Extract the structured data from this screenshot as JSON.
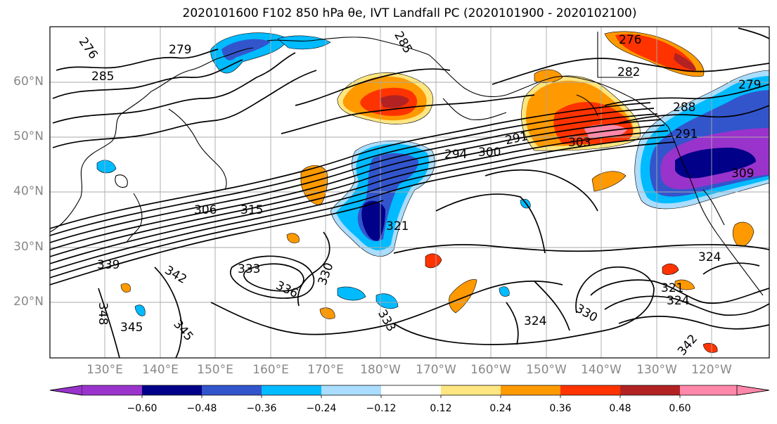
{
  "title": "2020101600 F102 850 hPa θe, IVT Landfall PC (2020101900 - 2020102100)",
  "lat_ticks": [
    "60°N",
    "50°N",
    "40°N",
    "30°N",
    "20°N"
  ],
  "lon_ticks": [
    "130°E",
    "140°E",
    "150°E",
    "160°E",
    "170°E",
    "180°W",
    "170°W",
    "160°W",
    "150°W",
    "140°W",
    "130°W",
    "120°W"
  ],
  "contour_labels": [
    "276",
    "279",
    "285",
    "285",
    "276",
    "282",
    "279",
    "288",
    "291",
    "294",
    "300",
    "303",
    "306",
    "309",
    "315",
    "321",
    "324",
    "321",
    "324",
    "330",
    "330",
    "333",
    "336",
    "339",
    "342",
    "342",
    "345",
    "345",
    "348",
    "333",
    "324",
    "291"
  ],
  "colorbar": {
    "ticks": [
      "−0.60",
      "−0.48",
      "−0.36",
      "−0.24",
      "−0.12",
      "0.12",
      "0.24",
      "0.36",
      "0.48",
      "0.60"
    ],
    "bins": [
      {
        "color": "#9933cc"
      },
      {
        "color": "#000088"
      },
      {
        "color": "#3355cc"
      },
      {
        "color": "#00bbff"
      },
      {
        "color": "#aaddff"
      },
      {
        "color": "#ffffff"
      },
      {
        "color": "#ffe680"
      },
      {
        "color": "#ff9900"
      },
      {
        "color": "#ff3300"
      },
      {
        "color": "#b22222"
      },
      {
        "color": "#ff88aa"
      }
    ]
  },
  "colors": {
    "purple": "#9933cc",
    "navy": "#000088",
    "blue": "#3355cc",
    "cyan": "#00bbff",
    "lightblue": "#aaddff",
    "yellow": "#ffe680",
    "orange": "#ff9900",
    "redorange": "#ff3300",
    "darkred": "#b22222",
    "pink": "#ff88aa"
  }
}
